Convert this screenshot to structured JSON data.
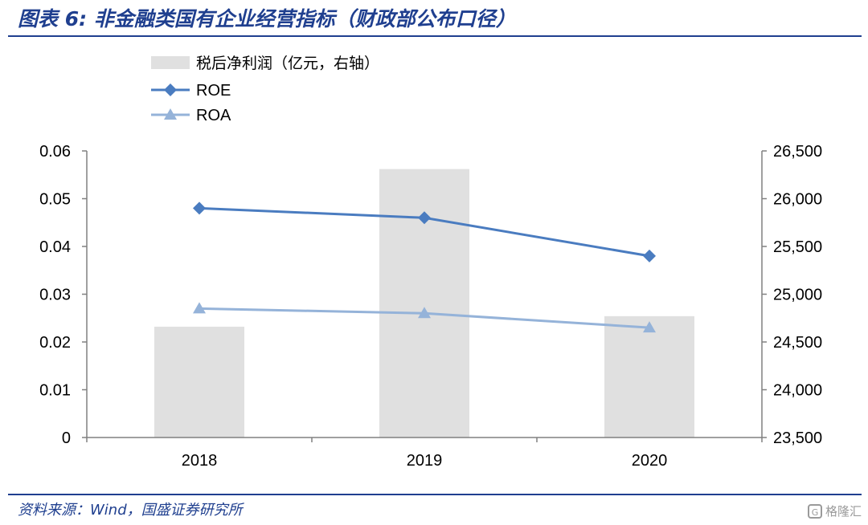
{
  "title": "图表 6:  非金融类国有企业经营指标（财政部公布口径）",
  "source": "资料来源：Wind，国盛证券研究所",
  "watermark": {
    "text": "格隆汇",
    "logo": "G"
  },
  "colors": {
    "title": "#1f3f8f",
    "bar": "#e0e0e0",
    "roe": "#4a7cc0",
    "roa": "#95b3d9"
  },
  "chart_data": {
    "type": "bar",
    "categories": [
      "2018",
      "2019",
      "2020"
    ],
    "series": [
      {
        "name": "税后净利润（亿元，右轴）",
        "kind": "bar",
        "axis": "right",
        "values": [
          24660,
          26310,
          24770
        ]
      },
      {
        "name": "ROE",
        "kind": "line",
        "axis": "left",
        "marker": "diamond",
        "values": [
          0.048,
          0.046,
          0.038
        ]
      },
      {
        "name": "ROA",
        "kind": "line",
        "axis": "left",
        "marker": "triangle",
        "values": [
          0.027,
          0.026,
          0.023
        ]
      }
    ],
    "y_left": {
      "min": 0,
      "max": 0.06,
      "ticks": [
        0,
        0.01,
        0.02,
        0.03,
        0.04,
        0.05,
        0.06
      ],
      "tick_labels": [
        "0",
        "0.01",
        "0.02",
        "0.03",
        "0.04",
        "0.05",
        "0.06"
      ]
    },
    "y_right": {
      "min": 23500,
      "max": 26500,
      "ticks": [
        23500,
        24000,
        24500,
        25000,
        25500,
        26000,
        26500
      ],
      "tick_labels": [
        "23,500",
        "24,000",
        "24,500",
        "25,000",
        "25,500",
        "26,000",
        "26,500"
      ]
    },
    "legend_position": "top-left",
    "grid": false
  }
}
